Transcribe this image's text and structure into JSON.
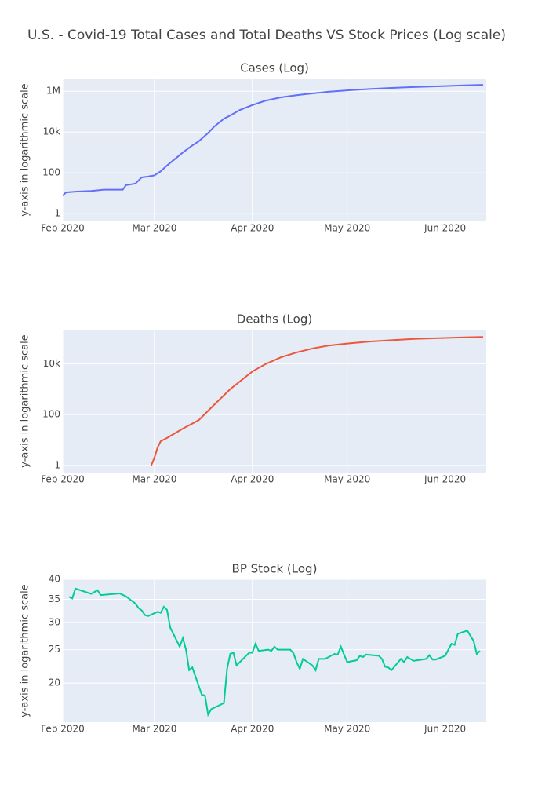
{
  "title": "U.S. - Covid-19 Total Cases and Total Deaths VS Stock Prices (Log scale)",
  "chart_data": [
    {
      "type": "line",
      "title": "Cases (Log)",
      "ylabel": "y-axis in logarithmic scale",
      "log_y": true,
      "grid": true,
      "color": "#636efa",
      "x": [
        "2020-02-01",
        "2020-02-02",
        "2020-02-05",
        "2020-02-10",
        "2020-02-14",
        "2020-02-16",
        "2020-02-20",
        "2020-02-21",
        "2020-02-24",
        "2020-02-26",
        "2020-02-28",
        "2020-03-01",
        "2020-03-03",
        "2020-03-05",
        "2020-03-08",
        "2020-03-10",
        "2020-03-13",
        "2020-03-15",
        "2020-03-18",
        "2020-03-20",
        "2020-03-23",
        "2020-03-25",
        "2020-03-28",
        "2020-04-01",
        "2020-04-05",
        "2020-04-10",
        "2020-04-15",
        "2020-04-20",
        "2020-04-25",
        "2020-05-01",
        "2020-05-08",
        "2020-05-15",
        "2020-05-22",
        "2020-06-01",
        "2020-06-07",
        "2020-06-13"
      ],
      "values": [
        7.6,
        11,
        12,
        13,
        15,
        15,
        15,
        25,
        30,
        60,
        66,
        75,
        120,
        230,
        550,
        1000,
        2200,
        3500,
        9000,
        19000,
        45000,
        65000,
        120000,
        210000,
        340000,
        500000,
        640000,
        780000,
        940000,
        1100000,
        1280000,
        1450000,
        1600000,
        1800000,
        1930000,
        2050000
      ],
      "xlim": [
        "2020-02-01",
        "2020-06-14"
      ],
      "xticks": [
        {
          "value": "2020-02-01",
          "label": "Feb 2020"
        },
        {
          "value": "2020-03-01",
          "label": "Mar 2020"
        },
        {
          "value": "2020-04-01",
          "label": "Apr 2020"
        },
        {
          "value": "2020-05-01",
          "label": "May 2020"
        },
        {
          "value": "2020-06-01",
          "label": "Jun 2020"
        }
      ],
      "ylim": [
        0.42,
        4200000
      ],
      "yticks": [
        1,
        100,
        {
          "value": 10000,
          "label": "10k"
        },
        {
          "value": 1000000,
          "label": "1M"
        }
      ]
    },
    {
      "type": "line",
      "title": "Deaths (Log)",
      "ylabel": "y-axis in logarithmic scale",
      "log_y": true,
      "grid": true,
      "color": "#EF553B",
      "x": [
        "2020-02-29",
        "2020-03-01",
        "2020-03-02",
        "2020-03-03",
        "2020-03-05",
        "2020-03-10",
        "2020-03-15",
        "2020-03-20",
        "2020-03-25",
        "2020-04-01",
        "2020-04-05",
        "2020-04-10",
        "2020-04-15",
        "2020-04-20",
        "2020-04-25",
        "2020-05-01",
        "2020-05-08",
        "2020-05-15",
        "2020-05-22",
        "2020-06-01",
        "2020-06-07",
        "2020-06-13"
      ],
      "values": [
        1,
        2,
        5,
        9,
        12,
        28,
        60,
        250,
        1000,
        5000,
        9500,
        18000,
        28000,
        40000,
        52000,
        63000,
        75000,
        85000,
        95000,
        104000,
        110000,
        114000
      ],
      "xlim": [
        "2020-02-01",
        "2020-06-14"
      ],
      "xticks": [
        {
          "value": "2020-02-01",
          "label": "Feb 2020"
        },
        {
          "value": "2020-03-01",
          "label": "Mar 2020"
        },
        {
          "value": "2020-04-01",
          "label": "Apr 2020"
        },
        {
          "value": "2020-05-01",
          "label": "May 2020"
        },
        {
          "value": "2020-06-01",
          "label": "Jun 2020"
        }
      ],
      "ylim": [
        0.52,
        220000
      ],
      "yticks": [
        1,
        100,
        {
          "value": 10000,
          "label": "10k"
        }
      ]
    },
    {
      "type": "line",
      "title": "BP Stock (Log)",
      "ylabel": "y-axis in logarithmic scale",
      "log_y": true,
      "grid": true,
      "color": "#00cc96",
      "x": [
        "2020-02-03",
        "2020-02-04",
        "2020-02-05",
        "2020-02-10",
        "2020-02-12",
        "2020-02-13",
        "2020-02-19",
        "2020-02-21",
        "2020-02-24",
        "2020-02-25",
        "2020-02-26",
        "2020-02-27",
        "2020-02-28",
        "2020-03-02",
        "2020-03-03",
        "2020-03-04",
        "2020-03-05",
        "2020-03-06",
        "2020-03-09",
        "2020-03-10",
        "2020-03-11",
        "2020-03-12",
        "2020-03-13",
        "2020-03-16",
        "2020-03-17",
        "2020-03-18",
        "2020-03-19",
        "2020-03-23",
        "2020-03-24",
        "2020-03-25",
        "2020-03-26",
        "2020-03-27",
        "2020-03-31",
        "2020-04-01",
        "2020-04-02",
        "2020-04-03",
        "2020-04-06",
        "2020-04-07",
        "2020-04-08",
        "2020-04-09",
        "2020-04-13",
        "2020-04-14",
        "2020-04-15",
        "2020-04-16",
        "2020-04-17",
        "2020-04-20",
        "2020-04-21",
        "2020-04-22",
        "2020-04-24",
        "2020-04-27",
        "2020-04-28",
        "2020-04-29",
        "2020-04-30",
        "2020-05-01",
        "2020-05-04",
        "2020-05-05",
        "2020-05-06",
        "2020-05-07",
        "2020-05-11",
        "2020-05-12",
        "2020-05-13",
        "2020-05-14",
        "2020-05-15",
        "2020-05-18",
        "2020-05-19",
        "2020-05-20",
        "2020-05-21",
        "2020-05-22",
        "2020-05-26",
        "2020-05-27",
        "2020-05-28",
        "2020-05-29",
        "2020-06-01",
        "2020-06-03",
        "2020-06-04",
        "2020-06-05",
        "2020-06-08",
        "2020-06-10",
        "2020-06-11",
        "2020-06-12"
      ],
      "values": [
        35.6,
        35.2,
        37.6,
        36.3,
        37.2,
        36.0,
        36.4,
        35.7,
        34.0,
        33.0,
        32.5,
        31.5,
        31.3,
        32.2,
        32.0,
        33.3,
        32.6,
        29.0,
        25.5,
        27.0,
        25.0,
        21.8,
        22.2,
        18.5,
        18.4,
        16.2,
        16.8,
        17.5,
        22.0,
        24.3,
        24.5,
        22.5,
        24.5,
        24.5,
        26.0,
        24.8,
        25.0,
        24.8,
        25.5,
        25.0,
        25.0,
        24.4,
        23.0,
        22.0,
        23.5,
        22.5,
        21.8,
        23.5,
        23.5,
        24.3,
        24.2,
        25.5,
        24.2,
        23.0,
        23.3,
        24.0,
        23.8,
        24.2,
        24.0,
        23.5,
        22.3,
        22.2,
        21.8,
        23.5,
        23.0,
        23.8,
        23.5,
        23.2,
        23.5,
        24.1,
        23.4,
        23.4,
        24.0,
        26.0,
        25.8,
        27.8,
        28.4,
        26.5,
        24.3,
        24.8
      ],
      "xlim": [
        "2020-02-01",
        "2020-06-14"
      ],
      "xticks": [
        {
          "value": "2020-02-01",
          "label": "Feb 2020"
        },
        {
          "value": "2020-03-01",
          "label": "Mar 2020"
        },
        {
          "value": "2020-04-01",
          "label": "Apr 2020"
        },
        {
          "value": "2020-05-01",
          "label": "May 2020"
        },
        {
          "value": "2020-06-01",
          "label": "Jun 2020"
        }
      ],
      "ylim": [
        15.4,
        40
      ],
      "yticks": [
        20,
        25,
        30,
        35,
        40
      ]
    }
  ]
}
